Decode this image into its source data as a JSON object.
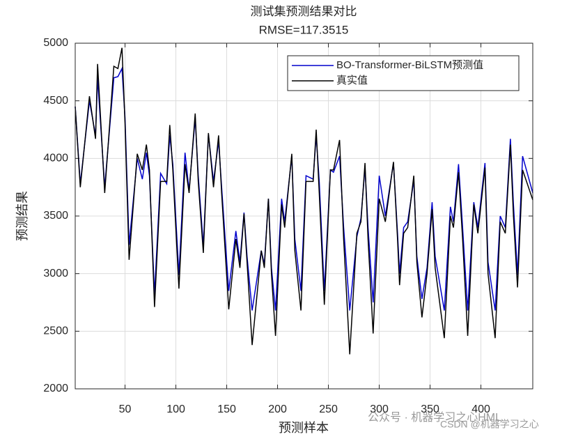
{
  "chart_data": {
    "type": "line",
    "title": "测试集预测结果对比",
    "subtitle": "RMSE=117.3515",
    "xlabel": "预测样本",
    "ylabel": "预测结果",
    "x": [
      1,
      6,
      15,
      21,
      23,
      30,
      39,
      43,
      47,
      50,
      54,
      62,
      67,
      71,
      74,
      79,
      85,
      91,
      94,
      97,
      103,
      109,
      113,
      119,
      122,
      127,
      132,
      137,
      142,
      145,
      152,
      159,
      163,
      167,
      170,
      175,
      184,
      187,
      191,
      194,
      198,
      204,
      207,
      214,
      217,
      223,
      228,
      235,
      238,
      241,
      246,
      252,
      255,
      261,
      265,
      271,
      278,
      282,
      286,
      289,
      294,
      300,
      306,
      314,
      318,
      320,
      324,
      328,
      334,
      337,
      342,
      347,
      352,
      355,
      364,
      370,
      373,
      378,
      382,
      387,
      393,
      397,
      404,
      407,
      414,
      419,
      424,
      429,
      432,
      436,
      441,
      451
    ],
    "series": [
      {
        "name": "BO-Transformer-BiLSTM预测值",
        "color": "#0000cc",
        "values": [
          4450,
          3780,
          4500,
          4200,
          4700,
          3750,
          4700,
          4710,
          4780,
          4350,
          3250,
          4000,
          3820,
          4050,
          3850,
          2820,
          3870,
          3780,
          4200,
          3950,
          2990,
          4050,
          3720,
          4350,
          3850,
          3240,
          4210,
          3800,
          4150,
          3750,
          2850,
          3370,
          3100,
          3530,
          3150,
          2680,
          3200,
          3080,
          3650,
          3050,
          2680,
          3650,
          3450,
          4020,
          3300,
          2850,
          3850,
          3820,
          4200,
          3800,
          2850,
          3900,
          3880,
          4020,
          3400,
          2680,
          3320,
          3480,
          3920,
          3400,
          2750,
          3850,
          3500,
          3960,
          3350,
          3000,
          3400,
          3450,
          3810,
          3150,
          2780,
          3050,
          3620,
          3150,
          2680,
          3580,
          3450,
          3950,
          3400,
          2680,
          3620,
          3400,
          3960,
          3100,
          2680,
          3500,
          3400,
          4170,
          3600,
          2990,
          4020,
          3700
        ]
      },
      {
        "name": "真实值",
        "color": "#000000",
        "values": [
          4450,
          3750,
          4540,
          4170,
          4820,
          3700,
          4800,
          4780,
          4960,
          4300,
          3120,
          4040,
          3900,
          4120,
          3900,
          2710,
          3800,
          3800,
          4290,
          3900,
          2870,
          3950,
          3700,
          4390,
          3800,
          3180,
          4220,
          3750,
          4200,
          3700,
          2690,
          3300,
          3050,
          3520,
          3100,
          2380,
          3200,
          3050,
          3650,
          3000,
          2460,
          3600,
          3400,
          4040,
          3200,
          2680,
          3800,
          3800,
          4250,
          3700,
          2730,
          3900,
          3900,
          4160,
          3300,
          2300,
          3350,
          3450,
          3960,
          3300,
          2480,
          3650,
          3450,
          3970,
          3300,
          2900,
          3350,
          3400,
          3850,
          3100,
          2620,
          3000,
          3560,
          3050,
          2440,
          3500,
          3400,
          3880,
          3300,
          2460,
          3600,
          3350,
          3920,
          3000,
          2440,
          3450,
          3350,
          4120,
          3500,
          2880,
          3900,
          3640
        ]
      }
    ],
    "xlim": [
      1,
      451
    ],
    "xticks": [
      50,
      100,
      150,
      200,
      250,
      300,
      350,
      400
    ],
    "ylim": [
      2000,
      5000
    ],
    "yticks": [
      2000,
      2500,
      3000,
      3500,
      4000,
      4500,
      5000
    ],
    "grid": true,
    "legend": "upper right",
    "watermark": [
      "公众号 · 机器学习之心HML",
      "CSDN @机器学习之心"
    ]
  }
}
